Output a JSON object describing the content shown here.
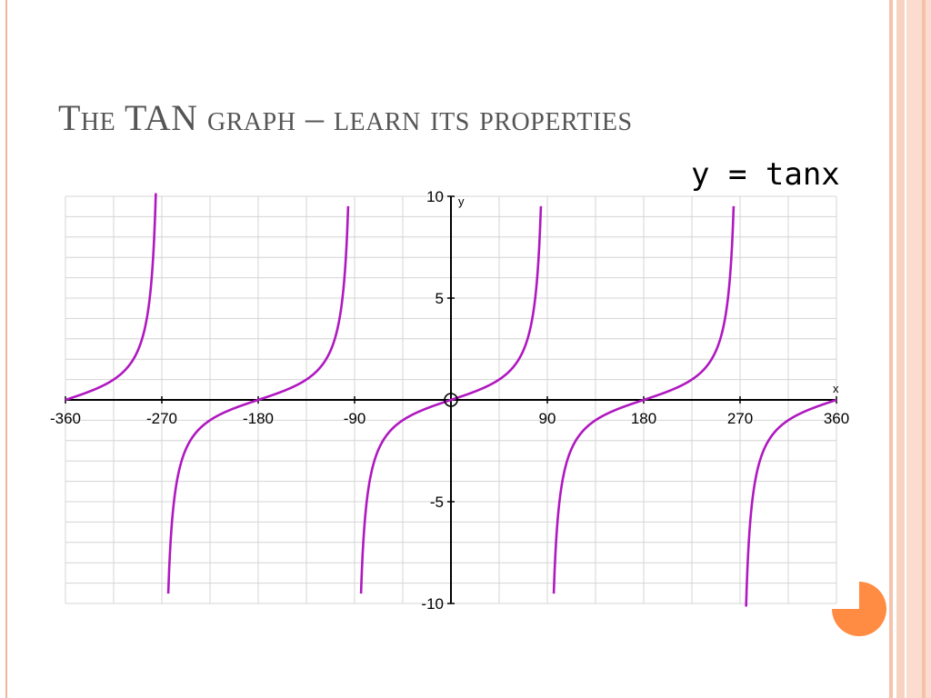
{
  "slide": {
    "title": "The TAN graph – learn its properties",
    "equation_label": "y = tanx",
    "accent_color": "#ff8c42",
    "border_color": "#f2b49a"
  },
  "chart_data": {
    "type": "line",
    "title": "",
    "function": "y = tan(x)",
    "xlabel": "x",
    "ylabel": "y",
    "xlim": [
      -360,
      360
    ],
    "ylim": [
      -10,
      10
    ],
    "xticks": [
      -360,
      -270,
      -180,
      -90,
      90,
      180,
      270,
      360
    ],
    "yticks": [
      -10,
      -5,
      5,
      10
    ],
    "grid": true,
    "asymptotes": [
      -270,
      -90,
      90,
      270
    ],
    "origin_marker": true,
    "series": [
      {
        "color": "#b018c0",
        "x": [
          -360,
          -330,
          -315,
          -300,
          -285,
          -280,
          -275,
          -265,
          -260,
          -255,
          -240,
          -225,
          -210,
          -180,
          -150,
          -135,
          -120,
          -105,
          -100,
          -95,
          -85,
          -80,
          -75,
          -60,
          -45,
          -30,
          0,
          30,
          45,
          60,
          75,
          80,
          85,
          95,
          100,
          105,
          120,
          135,
          150,
          180,
          210,
          225,
          240,
          255,
          260,
          265,
          275,
          280,
          285,
          300,
          315,
          330,
          360
        ],
        "y": [
          0,
          0.58,
          1,
          1.73,
          3.73,
          5.67,
          11.43,
          -11.43,
          -5.67,
          -3.73,
          -1.73,
          -1,
          -0.58,
          0,
          0.58,
          1,
          1.73,
          3.73,
          5.67,
          11.43,
          -11.43,
          -5.67,
          -3.73,
          -1.73,
          -1,
          -0.58,
          0,
          0.58,
          1,
          1.73,
          3.73,
          5.67,
          11.43,
          -11.43,
          -5.67,
          -3.73,
          -1.73,
          -1,
          -0.58,
          0,
          0.58,
          1,
          1.73,
          3.73,
          5.67,
          11.43,
          -11.43,
          -5.67,
          -3.73,
          -1.73,
          -1,
          -0.58,
          0
        ]
      }
    ]
  }
}
